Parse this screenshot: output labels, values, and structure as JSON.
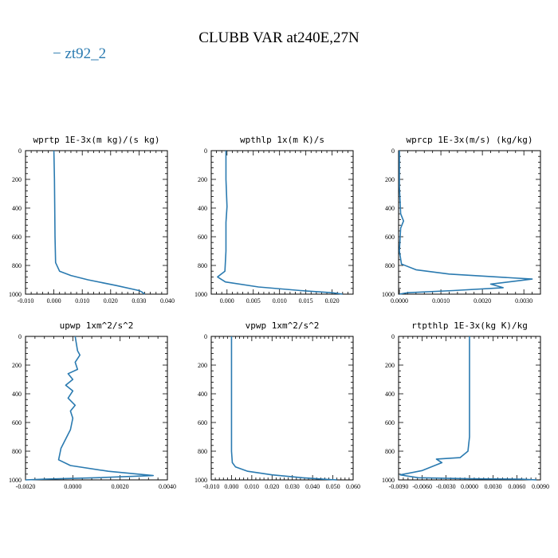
{
  "title": "CLUBB VAR at240E,27N",
  "legend": {
    "label": "− zt92_2",
    "color": "#2a7ab0"
  },
  "chart_data": [
    {
      "type": "line",
      "title": "wprtp  1E-3x(m kg)/(s kg)",
      "xlim": [
        -0.01,
        0.04
      ],
      "ylim": [
        1000,
        0
      ],
      "xticks": [
        -0.01,
        0.0,
        0.01,
        0.02,
        0.03,
        0.04
      ],
      "xtick_labels": [
        "-0.010",
        "0.000",
        "0.010",
        "0.020",
        "0.030",
        "0.040"
      ],
      "yticks": [
        0,
        200,
        400,
        600,
        800,
        1000
      ],
      "ytick_labels": [
        "0",
        "200",
        "400",
        "600",
        "800",
        "1000"
      ],
      "series": [
        {
          "color": "#2a7ab0",
          "x": [
            0.0,
            0.0002,
            0.0003,
            0.0004,
            0.0006,
            0.002,
            0.006,
            0.012,
            0.022,
            0.03,
            0.031,
            0.032
          ],
          "y": [
            0,
            200,
            400,
            600,
            780,
            840,
            870,
            900,
            940,
            975,
            985,
            1000
          ]
        }
      ]
    },
    {
      "type": "line",
      "title": "wpthlp  1x(m K)/s",
      "xlim": [
        -0.003,
        0.024
      ],
      "ylim": [
        1000,
        0
      ],
      "xticks": [
        0.0,
        0.005,
        0.01,
        0.015,
        0.02
      ],
      "xtick_labels": [
        "0.000",
        "0.005",
        "0.010",
        "0.015",
        "0.020"
      ],
      "yticks": [
        0,
        200,
        400,
        600,
        800,
        1000
      ],
      "ytick_labels": [
        "0",
        "200",
        "400",
        "600",
        "800",
        "1000"
      ],
      "series": [
        {
          "color": "#2a7ab0",
          "x": [
            -0.0002,
            -0.0002,
            0.0,
            -0.0002,
            -0.0002,
            -0.0004,
            -0.0018,
            -0.0003,
            0.006,
            0.014,
            0.02,
            0.022
          ],
          "y": [
            0,
            200,
            390,
            500,
            700,
            840,
            880,
            915,
            950,
            975,
            990,
            1000
          ]
        }
      ]
    },
    {
      "type": "line",
      "title": "wprcp  1E-3x(m/s) (kg/kg)",
      "xlim": [
        -2e-05,
        0.0034
      ],
      "ylim": [
        1000,
        0
      ],
      "xticks": [
        0.0,
        0.001,
        0.002,
        0.003
      ],
      "xtick_labels": [
        "0.0000",
        "0.0010",
        "0.0020",
        "0.0030"
      ],
      "yticks": [
        0,
        200,
        400,
        600,
        800,
        1000
      ],
      "ytick_labels": [
        "0",
        "200",
        "400",
        "600",
        "800",
        "1000"
      ],
      "series": [
        {
          "color": "#2a7ab0",
          "x": [
            0.0,
            0.0,
            3e-05,
            0.0001,
            3e-05,
            0.0,
            5e-05,
            0.0004,
            0.0012,
            0.0032,
            0.0022,
            0.0025,
            0.0013,
            0.0002,
            0.0
          ],
          "y": [
            0,
            250,
            440,
            490,
            540,
            700,
            790,
            830,
            860,
            895,
            930,
            955,
            975,
            990,
            1000
          ]
        }
      ]
    },
    {
      "type": "line",
      "title": "upwp  1xm^2/s^2",
      "xlim": [
        -0.002,
        0.004
      ],
      "ylim": [
        1000,
        0
      ],
      "xticks": [
        -0.002,
        0.0,
        0.002,
        0.004
      ],
      "xtick_labels": [
        "-0.0020",
        "0.0000",
        "0.0020",
        "0.0040"
      ],
      "yticks": [
        0,
        200,
        400,
        600,
        800,
        1000
      ],
      "ytick_labels": [
        "0",
        "200",
        "400",
        "600",
        "800",
        "1000"
      ],
      "series": [
        {
          "color": "#2a7ab0",
          "x": [
            0.0001,
            0.0002,
            0.0003,
            0.0001,
            0.0002,
            -0.0002,
            0.0,
            -0.0003,
            0.0,
            -0.0002,
            0.0001,
            -0.0001,
            0.0,
            -0.0001,
            -0.0005,
            -0.0006,
            -0.0001,
            0.0015,
            0.0034,
            0.001,
            -0.0012,
            -0.002
          ],
          "y": [
            0,
            100,
            130,
            180,
            230,
            260,
            300,
            340,
            380,
            430,
            480,
            520,
            570,
            650,
            780,
            860,
            900,
            940,
            970,
            985,
            995,
            1000
          ]
        }
      ]
    },
    {
      "type": "line",
      "title": "vpwp  1xm^2/s^2",
      "xlim": [
        -0.01,
        0.06
      ],
      "ylim": [
        1000,
        0
      ],
      "xticks": [
        -0.01,
        0.0,
        0.01,
        0.02,
        0.03,
        0.04,
        0.05,
        0.06
      ],
      "xtick_labels": [
        "-0.010",
        "0.000",
        "0.010",
        "0.020",
        "0.030",
        "0.040",
        "0.050",
        "0.060"
      ],
      "yticks": [
        0,
        200,
        400,
        600,
        800,
        1000
      ],
      "ytick_labels": [
        "0",
        "200",
        "400",
        "600",
        "800",
        "1000"
      ],
      "series": [
        {
          "color": "#2a7ab0",
          "x": [
            0.0,
            0.0,
            0.0,
            0.0,
            0.0004,
            0.002,
            0.008,
            0.02,
            0.035,
            0.045,
            0.052
          ],
          "y": [
            0,
            300,
            600,
            800,
            880,
            910,
            940,
            965,
            985,
            995,
            1000
          ]
        }
      ]
    },
    {
      "type": "line",
      "title": "rtpthlp  1E-3x(kg K)/kg",
      "xlim": [
        -0.009,
        0.009
      ],
      "ylim": [
        1000,
        0
      ],
      "xticks": [
        -0.009,
        -0.006,
        -0.003,
        0.0,
        0.003,
        0.006,
        0.009
      ],
      "xtick_labels": [
        "-0.0090",
        "-0.0060",
        "-0.0030",
        "0.0000",
        "0.0030",
        "0.0060",
        "0.0090"
      ],
      "yticks": [
        0,
        200,
        400,
        600,
        800,
        1000
      ],
      "ytick_labels": [
        "0",
        "200",
        "400",
        "600",
        "800",
        "1000"
      ],
      "series": [
        {
          "color": "#2a7ab0",
          "x": [
            0.0,
            0.0,
            0.0,
            -0.0002,
            -0.0012,
            -0.0042,
            -0.0035,
            -0.0042,
            -0.006,
            -0.0088,
            -0.0065,
            0.0,
            0.0065,
            0.0085
          ],
          "y": [
            0,
            400,
            700,
            800,
            845,
            855,
            880,
            895,
            935,
            965,
            985,
            992,
            995,
            1000
          ]
        }
      ]
    }
  ]
}
